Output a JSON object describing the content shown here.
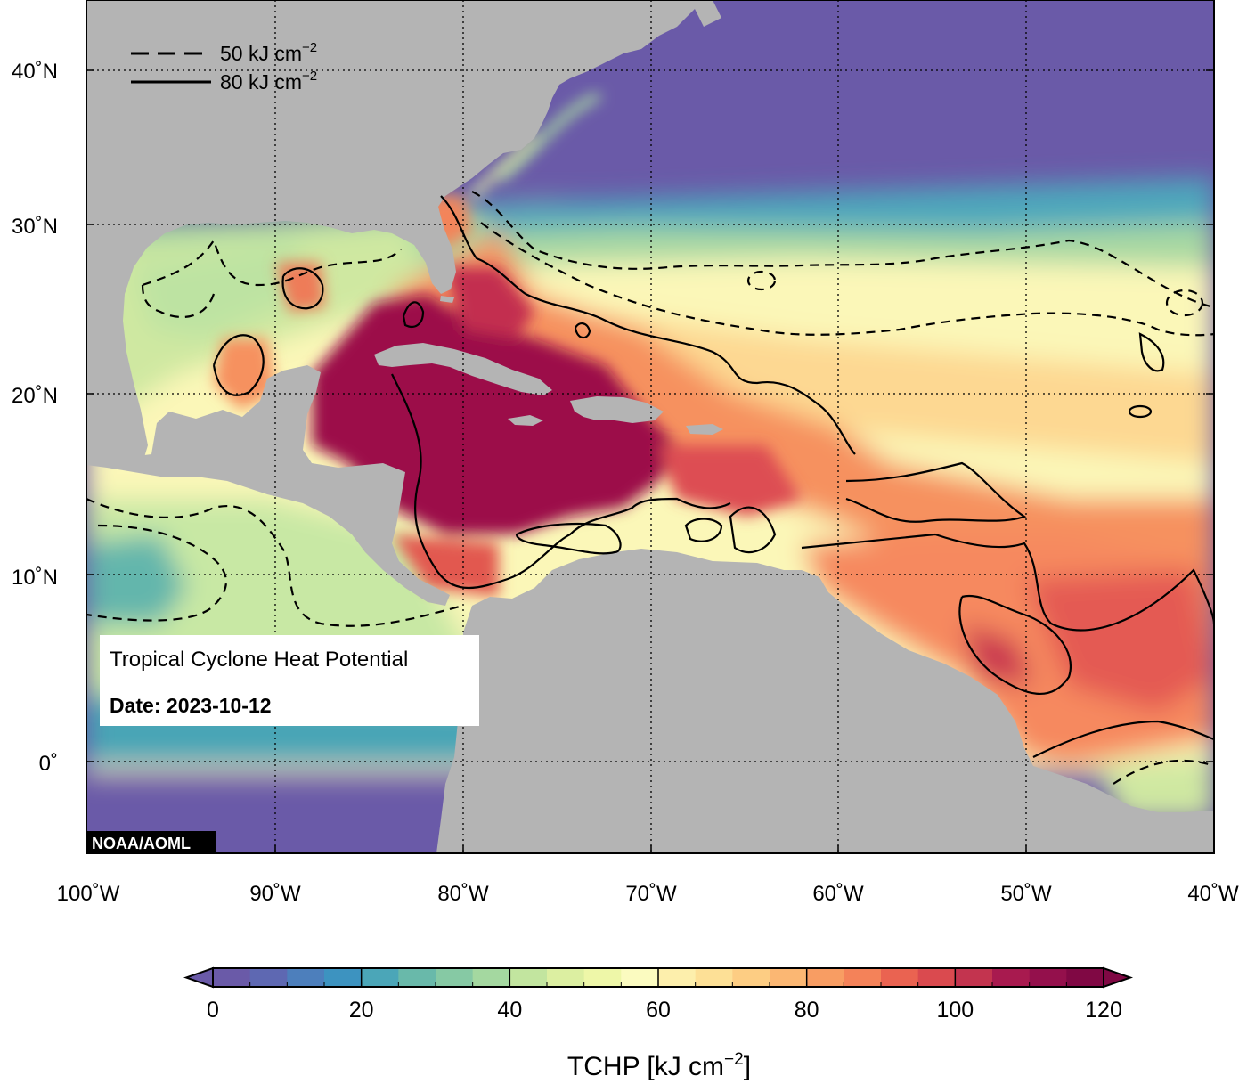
{
  "figure": {
    "info_title": "Tropical Cyclone Heat Potential",
    "date_label": "Date: 2023-10-12",
    "credit": "NOAA/AOML"
  },
  "legend": {
    "dashed_label": "50 kJ cm",
    "solid_label": "80 kJ cm",
    "unit_exponent": "−2"
  },
  "axes": {
    "lat_labels": [
      "40˚N",
      "30˚N",
      "20˚N",
      "10˚N",
      "0˚"
    ],
    "lon_labels": [
      "100˚W",
      "90˚W",
      "80˚W",
      "70˚W",
      "60˚W",
      "50˚W",
      "40˚W"
    ]
  },
  "colorbar": {
    "min": 0,
    "max": 120,
    "step": 5,
    "tick_labels": [
      "0",
      "20",
      "40",
      "60",
      "80",
      "100",
      "120"
    ],
    "title": "TCHP [kJ cm",
    "title_exponent": "−2",
    "title_suffix": "]",
    "colors": [
      "#6a5aa8",
      "#5e68b2",
      "#4d7fbc",
      "#3d93c0",
      "#4ba6b8",
      "#69b9aa",
      "#86c9a4",
      "#a4d8a0",
      "#c2e59f",
      "#dcefa1",
      "#eef7a8",
      "#fbfbc0",
      "#fdefac",
      "#fde096",
      "#fdcd83",
      "#fbb773",
      "#f89d63",
      "#f48259",
      "#ea6351",
      "#da4a4f",
      "#c3344f",
      "#a81a4f",
      "#94104c",
      "#800844"
    ]
  },
  "colors": {
    "ocean_cold": "#6a5aa8",
    "land": "#b4b4b4",
    "hot_core": "#9c1149"
  }
}
